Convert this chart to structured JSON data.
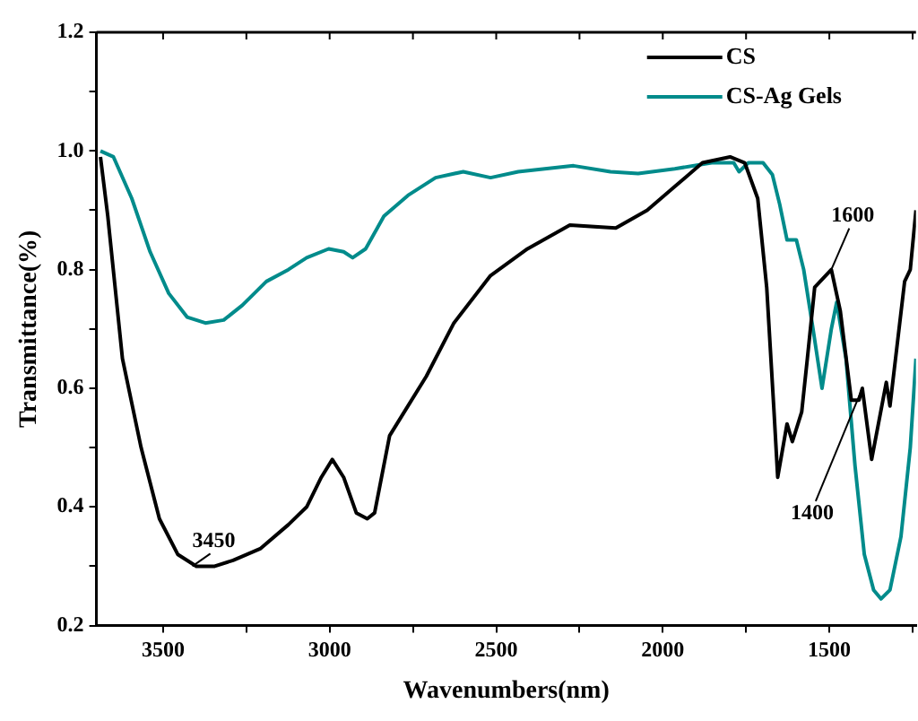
{
  "chart_data": {
    "type": "line",
    "xlabel": "Wavenumbers(nm)",
    "ylabel": "Transmittance(%)",
    "xlim": [
      3700,
      1240
    ],
    "ylim": [
      0.2,
      1.2
    ],
    "xticks": [
      3500,
      {
        "value": 3250,
        "label": null
      },
      3000,
      {
        "value": 2750,
        "label": null
      },
      2500,
      {
        "value": 2250,
        "label": null
      },
      2000,
      {
        "value": 1750,
        "label": null
      },
      1500,
      {
        "value": 1250,
        "label": null
      }
    ],
    "yticks": [
      0.2,
      {
        "value": 0.3,
        "label": null
      },
      0.4,
      {
        "value": 0.5,
        "label": null
      },
      0.6,
      {
        "value": 0.7,
        "label": null
      },
      0.8,
      {
        "value": 0.9,
        "label": null
      },
      {
        "value": 1.0,
        "label": "1.0"
      },
      {
        "value": 1.1,
        "label": null
      },
      1.2
    ],
    "grid": false,
    "legend": "top right",
    "marker": "none",
    "line_style": "solid",
    "annotations": [
      {
        "text": "3450",
        "x": 3412,
        "y": 0.3
      },
      {
        "text": "1600",
        "x": 1494,
        "y": 0.8
      },
      {
        "text": "1400",
        "x": 1401,
        "y": 0.6
      }
    ],
    "series": [
      {
        "name": "CS",
        "color": "#000000",
        "x": [
          3688,
          3666,
          3622,
          3566,
          3511,
          3456,
          3400,
          3345,
          3290,
          3207,
          3124,
          3069,
          3025,
          2992,
          2958,
          2920,
          2887,
          2865,
          2820,
          2776,
          2710,
          2627,
          2517,
          2406,
          2279,
          2141,
          2047,
          1964,
          1881,
          1798,
          1754,
          1715,
          1688,
          1666,
          1655,
          1627,
          1611,
          1583,
          1566,
          1544,
          1494,
          1467,
          1434,
          1411,
          1401,
          1373,
          1329,
          1318,
          1274,
          1257,
          1240
        ],
        "values": [
          0.99,
          0.89,
          0.65,
          0.5,
          0.38,
          0.32,
          0.3,
          0.3,
          0.31,
          0.33,
          0.37,
          0.4,
          0.45,
          0.48,
          0.45,
          0.39,
          0.38,
          0.39,
          0.52,
          0.56,
          0.62,
          0.71,
          0.79,
          0.835,
          0.875,
          0.87,
          0.9,
          0.94,
          0.98,
          0.99,
          0.98,
          0.92,
          0.77,
          0.56,
          0.45,
          0.54,
          0.51,
          0.56,
          0.65,
          0.77,
          0.8,
          0.73,
          0.58,
          0.58,
          0.6,
          0.48,
          0.61,
          0.57,
          0.78,
          0.8,
          0.9
        ]
      },
      {
        "name": "CS-Ag Gels",
        "color": "#008b8b",
        "x": [
          3688,
          3649,
          3594,
          3539,
          3483,
          3428,
          3373,
          3318,
          3262,
          3190,
          3124,
          3069,
          3003,
          2958,
          2931,
          2892,
          2837,
          2765,
          2682,
          2599,
          2517,
          2434,
          2268,
          2157,
          2074,
          1964,
          1853,
          1787,
          1771,
          1743,
          1699,
          1671,
          1649,
          1627,
          1599,
          1577,
          1549,
          1522,
          1494,
          1478,
          1450,
          1423,
          1395,
          1367,
          1345,
          1318,
          1285,
          1257,
          1240
        ],
        "values": [
          1.0,
          0.99,
          0.92,
          0.83,
          0.76,
          0.72,
          0.71,
          0.715,
          0.74,
          0.78,
          0.8,
          0.82,
          0.835,
          0.83,
          0.82,
          0.835,
          0.89,
          0.925,
          0.955,
          0.965,
          0.955,
          0.965,
          0.975,
          0.965,
          0.962,
          0.97,
          0.98,
          0.98,
          0.965,
          0.98,
          0.98,
          0.96,
          0.91,
          0.85,
          0.85,
          0.8,
          0.7,
          0.6,
          0.7,
          0.745,
          0.65,
          0.47,
          0.32,
          0.26,
          0.245,
          0.26,
          0.35,
          0.5,
          0.65
        ]
      }
    ]
  }
}
